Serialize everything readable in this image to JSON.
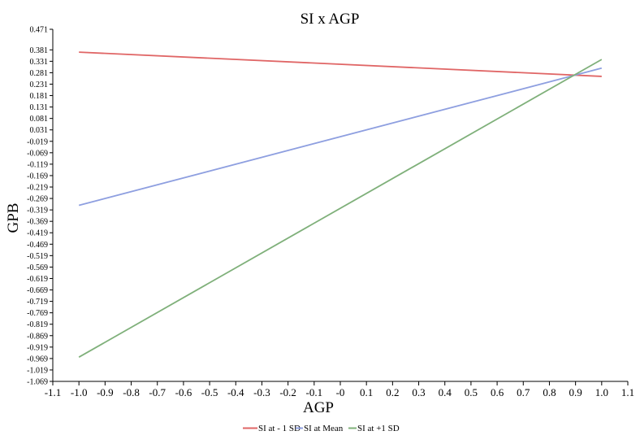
{
  "chart_data": {
    "type": "line",
    "title": "SI x AGP",
    "xlabel": "AGP",
    "ylabel": "GPB",
    "xlim": [
      -1.1,
      1.1
    ],
    "ylim": [
      -1.069,
      0.471
    ],
    "x_ticks": [
      "-1.1",
      "-1.0",
      "-0.9",
      "-0.8",
      "-0.7",
      "-0.6",
      "-0.5",
      "-0.4",
      "-0.3",
      "-0.2",
      "-0.1",
      "-0",
      "0.1",
      "0.2",
      "0.3",
      "0.4",
      "0.5",
      "0.6",
      "0.7",
      "0.8",
      "0.9",
      "1.0",
      "1.1"
    ],
    "y_ticks": [
      "0.471",
      "0.381",
      "0.331",
      "0.281",
      "0.231",
      "0.181",
      "0.131",
      "0.081",
      "0.031",
      "-0.019",
      "-0.069",
      "-0.119",
      "-0.169",
      "-0.219",
      "-0.269",
      "-0.319",
      "-0.369",
      "-0.419",
      "-0.469",
      "-0.519",
      "-0.569",
      "-0.619",
      "-0.669",
      "-0.719",
      "-0.769",
      "-0.819",
      "-0.869",
      "-0.919",
      "-0.969",
      "-1.019",
      "-1.069"
    ],
    "grid": false,
    "legend_position": "bottom",
    "series": [
      {
        "name": "SI at - 1 SD",
        "color": "#e06666",
        "x": [
          -1.0,
          1.0
        ],
        "y": [
          0.371,
          0.265
        ]
      },
      {
        "name": "SI at Mean",
        "color": "#8e9fe0",
        "x": [
          -1.0,
          1.0
        ],
        "y": [
          -0.299,
          0.301
        ]
      },
      {
        "name": "SI at +1 SD",
        "color": "#7fb07a",
        "x": [
          -1.0,
          1.0
        ],
        "y": [
          -0.963,
          0.339
        ]
      }
    ]
  }
}
